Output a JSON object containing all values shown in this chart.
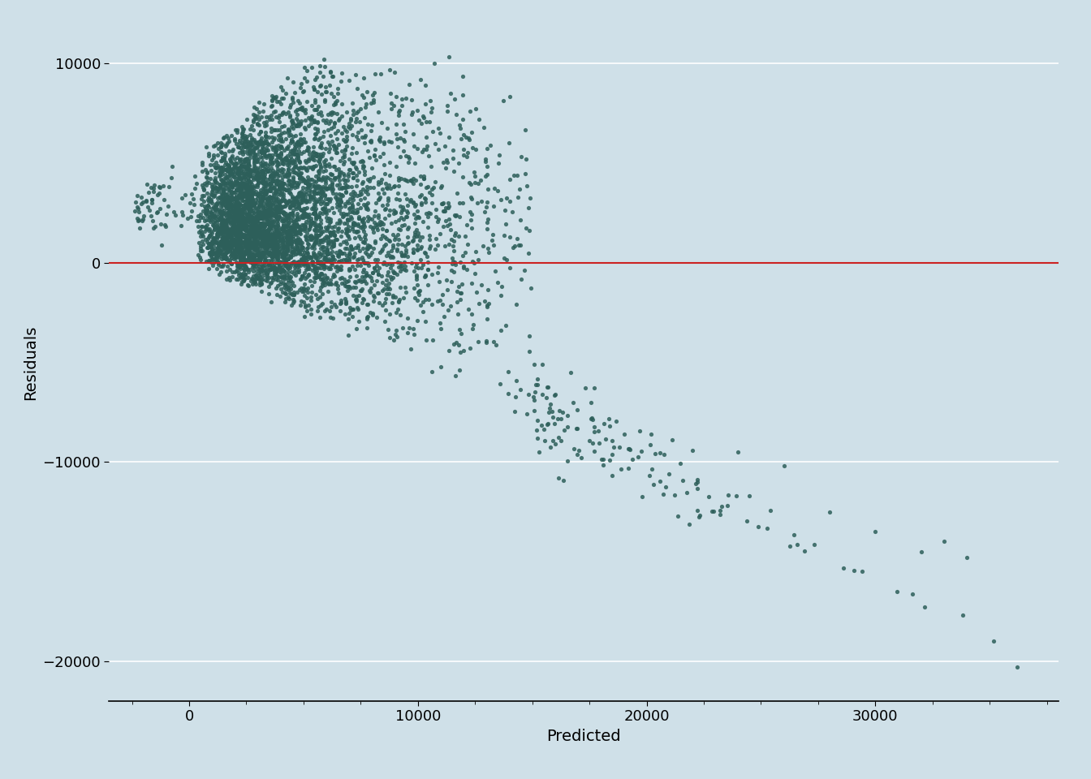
{
  "title": "",
  "xlabel": "Predicted",
  "ylabel": "Residuals",
  "xlim": [
    -3500,
    38000
  ],
  "ylim": [
    -22000,
    12000
  ],
  "xticks": [
    0,
    10000,
    20000,
    30000
  ],
  "yticks": [
    -20000,
    -10000,
    0,
    10000
  ],
  "background_color": "#cfe0e8",
  "scatter_color": "#2d5f5a",
  "hline_color": "#cc2222",
  "hline_y": 0,
  "scatter_alpha": 0.85,
  "scatter_size": 14,
  "grid_color": "#ffffff",
  "xlabel_fontsize": 14,
  "ylabel_fontsize": 14,
  "tick_fontsize": 13,
  "n_points": 5000,
  "seed": 42
}
